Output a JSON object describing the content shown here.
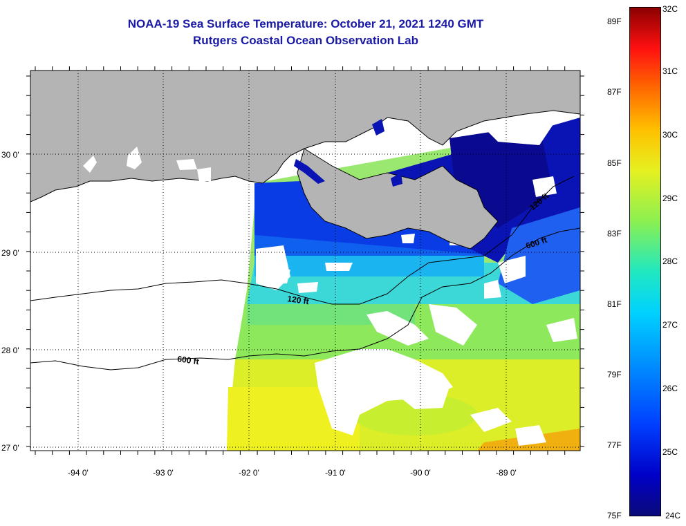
{
  "title_line1": "NOAA-19 Sea Surface Temperature:  October 21, 2021 1240 GMT",
  "title_line2": "Rutgers Coastal Ocean Observation Lab",
  "lat_labels": [
    "30 0'",
    "29 0'",
    "28 0'",
    "27 0'"
  ],
  "lon_labels": [
    "-94 0'",
    "-93 0'",
    "-92 0'",
    "-91 0'",
    "-90 0'",
    "-89 0'"
  ],
  "contour_labels": [
    "120 ft",
    "600 ft",
    "120 ft",
    "600 ft"
  ],
  "colorbar": {
    "fahrenheit": [
      "89F",
      "87F",
      "85F",
      "83F",
      "81F",
      "79F",
      "77F",
      "75F"
    ],
    "celsius": [
      "32C",
      "31C",
      "30C",
      "29C",
      "28C",
      "27C",
      "26C",
      "25C",
      "24C"
    ],
    "range_c": [
      24,
      32
    ],
    "range_f": [
      75,
      89
    ]
  },
  "colors": {
    "title": "#1a1aa6",
    "land": "#b4b4b4",
    "cold": "#0a0a7a",
    "warm": "#8b0000"
  }
}
